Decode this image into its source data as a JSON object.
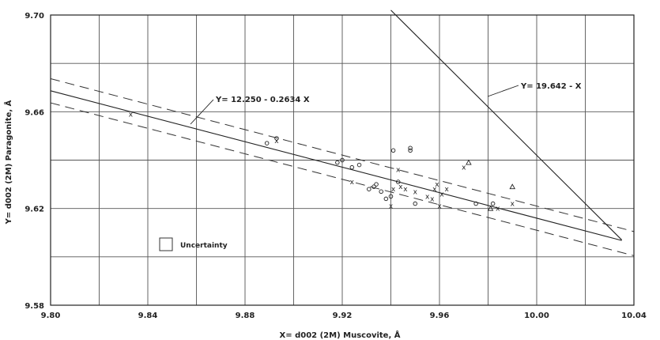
{
  "chart_data": {
    "type": "scatter",
    "title": "",
    "xlabel": "X= d002 (2M)  Muscovite, Å",
    "ylabel": "Y= d002 (2M)  Paragonite, Å",
    "xlim": [
      9.8,
      10.04
    ],
    "ylim": [
      9.58,
      9.7
    ],
    "x_ticks": [
      9.8,
      9.84,
      9.88,
      9.92,
      9.96,
      10.0,
      10.04
    ],
    "x_tick_labels": [
      "9.80",
      "9.84",
      "9.88",
      "9.92",
      "9.96",
      "10.00",
      "10.04"
    ],
    "y_ticks": [
      9.58,
      9.62,
      9.66,
      9.7
    ],
    "y_tick_labels": [
      "9.58",
      "9.62",
      "9.66",
      "9.70"
    ],
    "grid": true,
    "regression_line": {
      "label": "Y= 12.250 - 0.2634 X",
      "intercept": 12.25,
      "slope": -0.2634,
      "x_range": [
        9.8,
        10.035
      ]
    },
    "uncertainty_band": {
      "offset": 0.005
    },
    "secondary_line": {
      "label": "Y= 19.642 - X",
      "intercept": 19.642,
      "slope": -1,
      "x_range": [
        9.94,
        10.035
      ]
    },
    "legend": {
      "label": "Uncertainty",
      "placement": "lower-left"
    },
    "series": [
      {
        "marker": "x",
        "x": [
          9.833,
          9.893,
          9.924,
          9.94,
          9.941,
          9.943,
          9.944,
          9.946,
          9.95,
          9.955,
          9.957,
          9.958,
          9.959,
          9.96,
          9.961,
          9.963,
          9.97,
          9.984,
          9.99
        ],
        "y": [
          9.659,
          9.648,
          9.631,
          9.621,
          9.628,
          9.636,
          9.629,
          9.628,
          9.627,
          9.625,
          9.624,
          9.628,
          9.63,
          9.621,
          9.626,
          9.628,
          9.637,
          9.62,
          9.622
        ]
      },
      {
        "marker": "circle",
        "x": [
          9.889,
          9.893,
          9.918,
          9.92,
          9.924,
          9.927,
          9.931,
          9.933,
          9.934,
          9.936,
          9.938,
          9.94,
          9.941,
          9.943,
          9.948,
          9.948,
          9.95,
          9.975,
          9.982
        ],
        "y": [
          9.647,
          9.649,
          9.639,
          9.64,
          9.637,
          9.638,
          9.628,
          9.629,
          9.63,
          9.627,
          9.624,
          9.625,
          9.644,
          9.631,
          9.645,
          9.644,
          9.622,
          9.622,
          9.622
        ]
      },
      {
        "marker": "triangle",
        "x": [
          9.972,
          9.981,
          9.99
        ],
        "y": [
          9.639,
          9.62,
          9.629
        ]
      }
    ]
  }
}
